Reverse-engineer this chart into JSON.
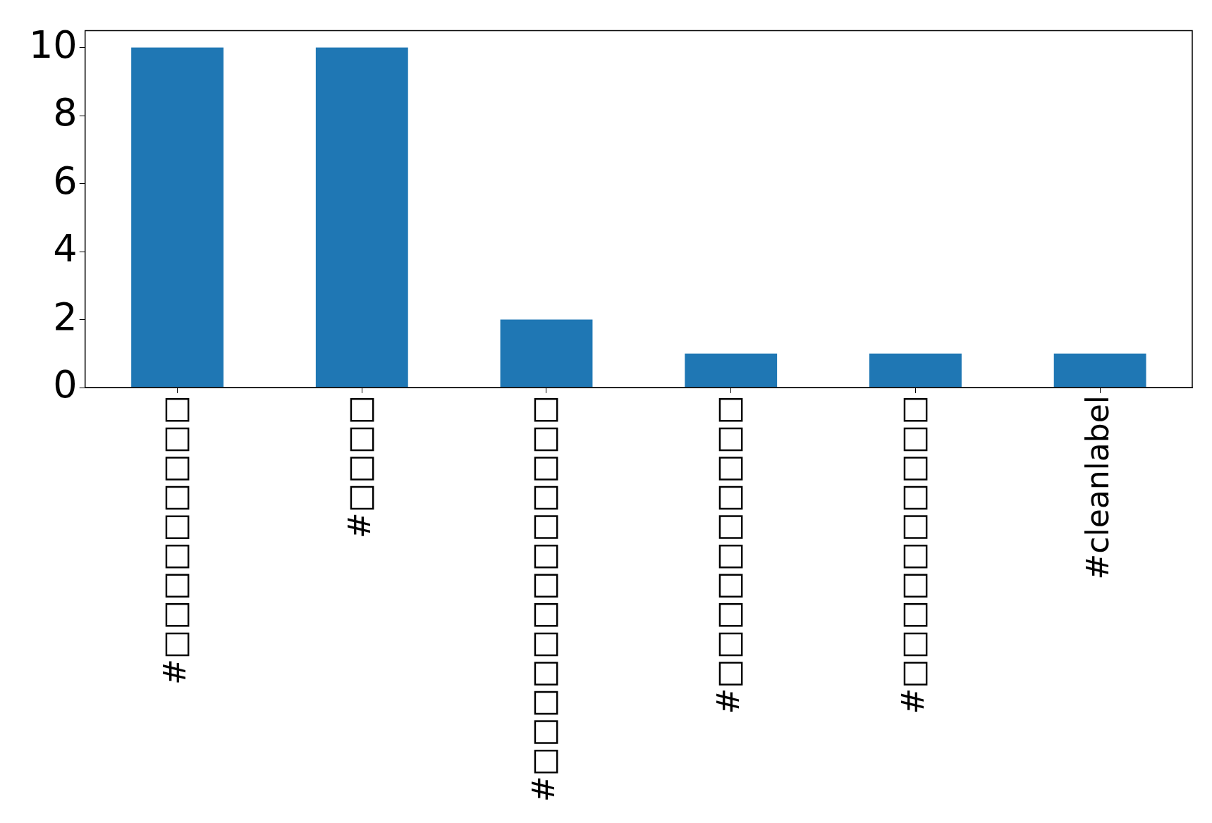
{
  "chart_data": {
    "type": "bar",
    "categories": [
      "#□□□□□□□□□",
      "#□□□□",
      "#□□□□□□□□□□□□□",
      "#□□□□□□□□□□",
      "#□□□□□□□□□□",
      "#cleanlabel"
    ],
    "values": [
      10,
      10,
      2,
      1,
      1,
      1
    ],
    "color": "#1f77b4",
    "ylim": [
      0,
      10.5
    ],
    "yticks": [
      0,
      2,
      4,
      6,
      8,
      10
    ],
    "grid": false,
    "legend": false
  }
}
